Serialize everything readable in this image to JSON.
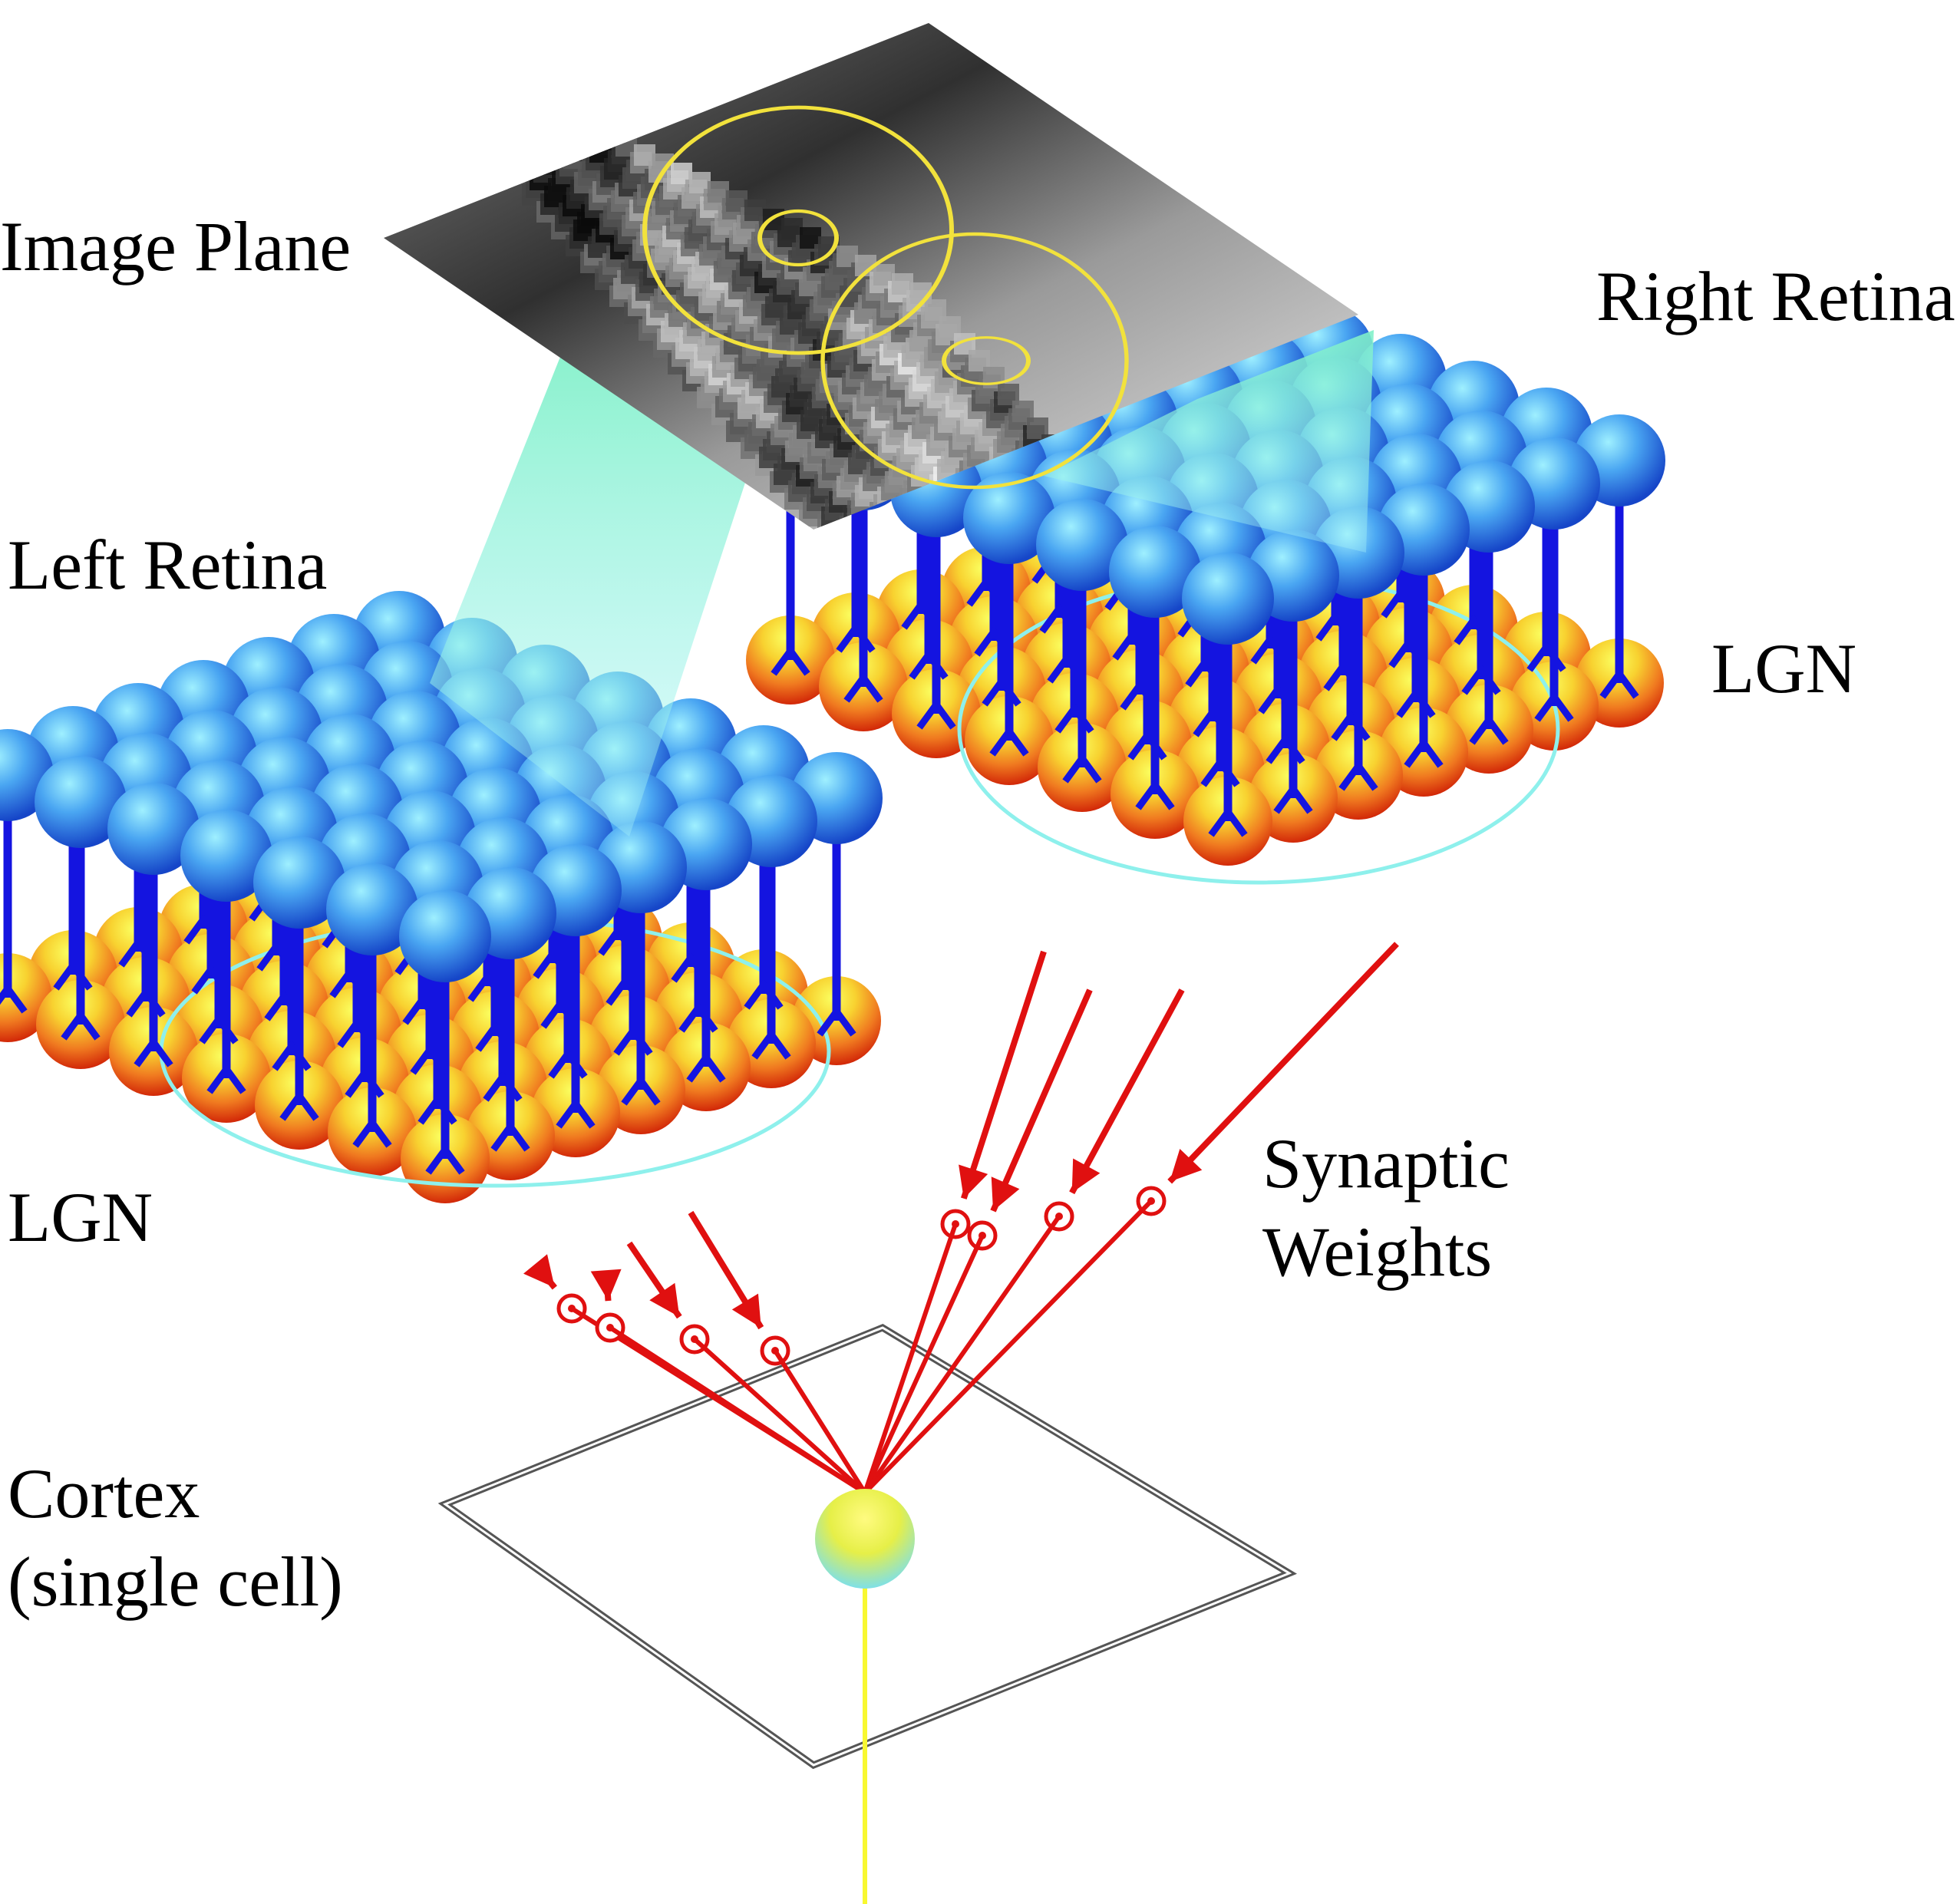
{
  "labels": {
    "image_plane": "Image Plane",
    "right_retina": "Right Retina",
    "left_retina": "Left Retina",
    "lgn_right": "LGN",
    "lgn_left": "LGN",
    "synaptic_line1": "Synaptic",
    "synaptic_line2": "Weights",
    "cortex_line1": "Cortex",
    "cortex_line2": "(single cell)"
  },
  "colors": {
    "retina_cell": "#4aa6f2",
    "lgn_cell": "#f07a20",
    "lgn_glow": "#f6f23a",
    "axon": "#1414e0",
    "synapse": "#e01010",
    "receptive_field": "#f2e23c",
    "projection_cone": "#7ff0e8",
    "cortex_cell": "#f5f03c",
    "cortex_axon": "#f8f830",
    "cortex_frame": "#555555"
  },
  "icons": {
    "retina_cell": "blue-sphere-icon",
    "lgn_cell": "orange-sphere-icon",
    "synapse": "red-circle-icon",
    "arrow": "red-arrowhead-icon"
  }
}
